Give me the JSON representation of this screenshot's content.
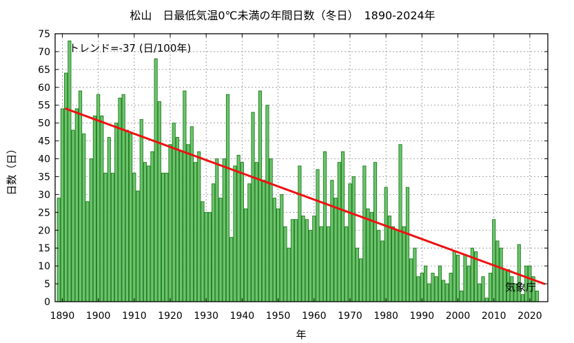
{
  "chart_data": {
    "type": "bar",
    "title": "松山　日最低気温0℃未満の年間日数（冬日）　1890-2024年",
    "xlabel": "年",
    "ylabel": "日数（日）",
    "xlim": [
      1888,
      2025
    ],
    "ylim": [
      0,
      75
    ],
    "yticks": [
      0,
      5,
      10,
      15,
      20,
      25,
      30,
      35,
      40,
      45,
      50,
      55,
      60,
      65,
      70,
      75
    ],
    "xticks": [
      1890,
      1900,
      1910,
      1920,
      1930,
      1940,
      1950,
      1960,
      1970,
      1980,
      1990,
      2000,
      2010,
      2020
    ],
    "grid": true,
    "bar_color": "#6cc46c",
    "bar_edge_color": "#1d7a1d",
    "trend_color": "#ee1111",
    "x_start": 1889,
    "values": [
      29,
      54,
      64,
      73,
      48,
      54,
      59,
      47,
      28,
      40,
      52,
      58,
      52,
      36,
      46,
      36,
      50,
      57,
      58,
      48,
      47,
      36,
      31,
      51,
      39,
      38,
      42,
      68,
      56,
      36,
      36,
      44,
      50,
      46,
      42,
      59,
      44,
      49,
      39,
      42,
      28,
      25,
      25,
      33,
      40,
      29,
      40,
      58,
      18,
      38,
      41,
      39,
      26,
      33,
      53,
      39,
      59,
      34,
      55,
      40,
      29,
      26,
      30,
      21,
      15,
      23,
      23,
      38,
      24,
      23,
      20,
      24,
      37,
      21,
      42,
      21,
      34,
      29,
      39,
      42,
      21,
      33,
      35,
      15,
      12,
      38,
      26,
      25,
      39,
      20,
      17,
      32,
      24,
      21,
      20,
      44,
      21,
      32,
      12,
      15,
      7,
      8,
      10,
      5,
      8,
      7,
      10,
      6,
      5,
      8,
      14,
      13,
      3,
      13,
      10,
      15,
      14,
      5,
      7,
      1,
      8,
      23,
      17,
      15,
      9,
      9,
      7,
      5,
      16,
      2,
      10,
      10,
      7,
      3
    ],
    "trend": {
      "label": "トレンド=-37 (日/100年)",
      "x": [
        1891,
        2024
      ],
      "y": [
        54,
        5
      ]
    },
    "source_label": "気象庁"
  }
}
